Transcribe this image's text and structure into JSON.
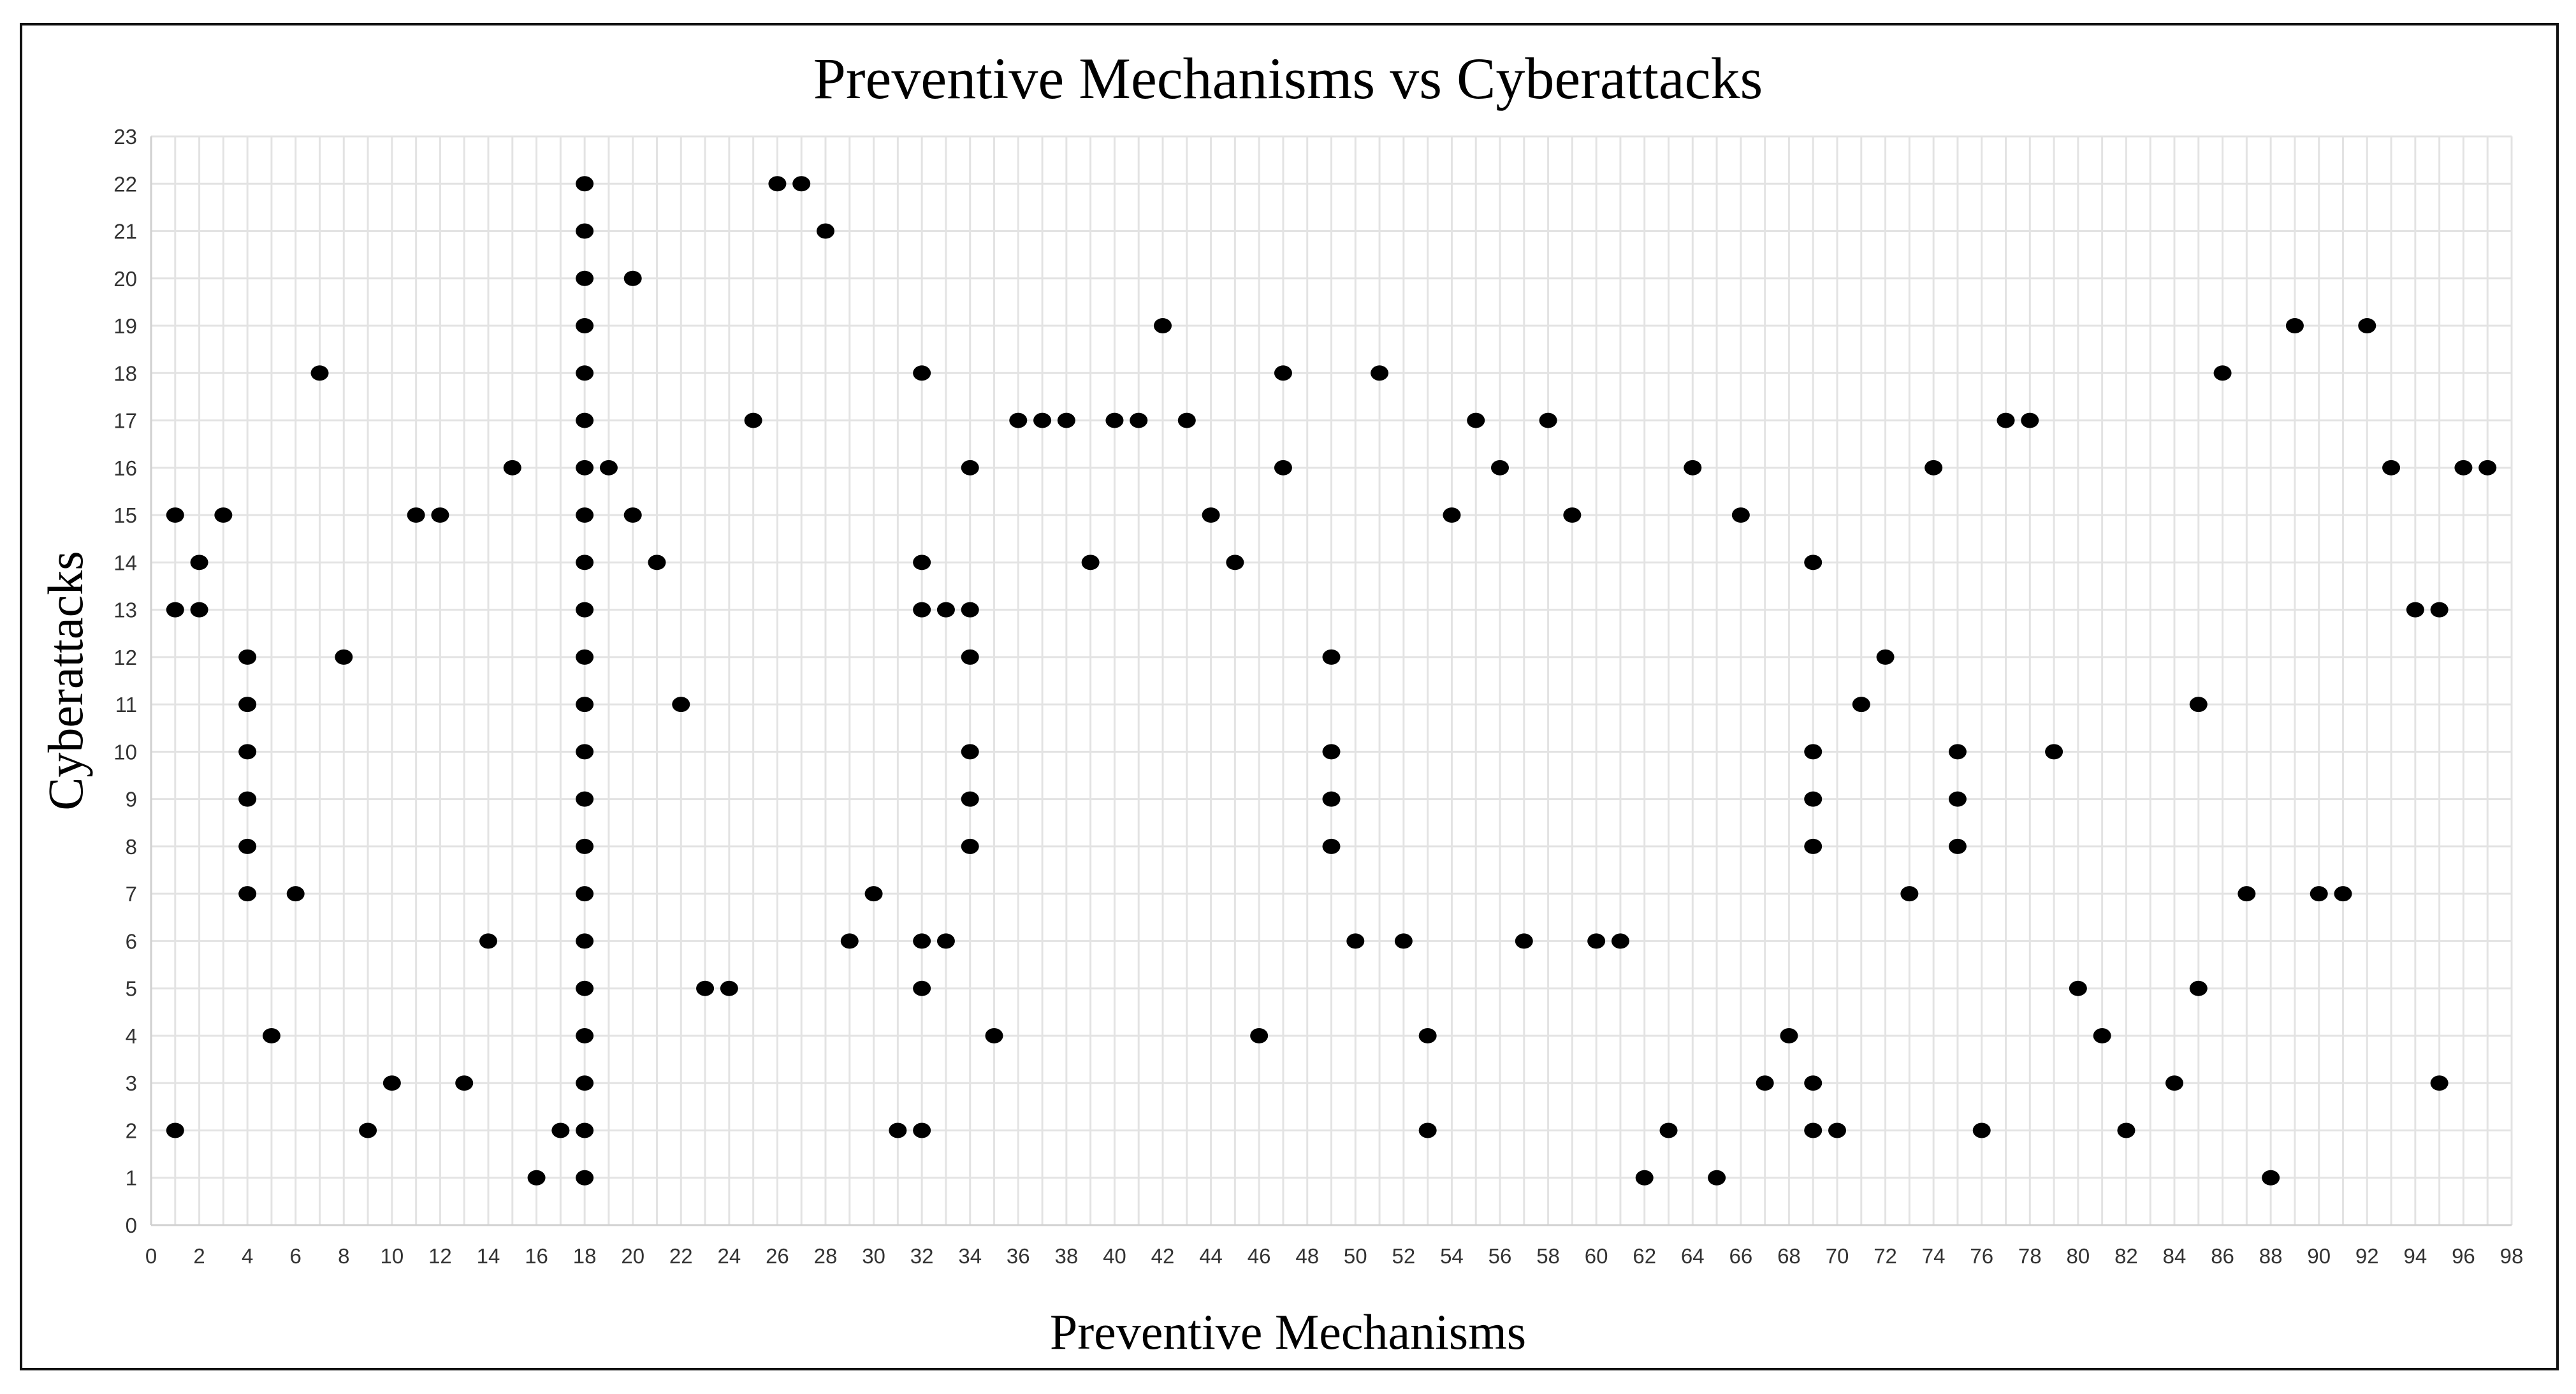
{
  "chart_data": {
    "type": "scatter",
    "title": "Preventive Mechanisms vs Cyberattacks",
    "xlabel": "Preventive Mechanisms",
    "ylabel": "Cyberattacks",
    "xlim": [
      0,
      98
    ],
    "ylim": [
      0,
      23
    ],
    "x_tick_step": 2,
    "y_tick_step": 1,
    "grid": true,
    "marker_color": "#000000",
    "grid_color": "#e3e3e3",
    "points": [
      [
        1,
        15
      ],
      [
        1,
        13
      ],
      [
        1,
        2
      ],
      [
        2,
        14
      ],
      [
        2,
        13
      ],
      [
        3,
        15
      ],
      [
        4,
        12
      ],
      [
        4,
        11
      ],
      [
        4,
        10
      ],
      [
        4,
        9
      ],
      [
        4,
        8
      ],
      [
        4,
        7
      ],
      [
        5,
        4
      ],
      [
        6,
        7
      ],
      [
        7,
        18
      ],
      [
        8,
        12
      ],
      [
        9,
        2
      ],
      [
        10,
        3
      ],
      [
        11,
        15
      ],
      [
        12,
        15
      ],
      [
        13,
        3
      ],
      [
        14,
        6
      ],
      [
        15,
        16
      ],
      [
        16,
        1
      ],
      [
        17,
        2
      ],
      [
        18,
        22
      ],
      [
        18,
        21
      ],
      [
        18,
        20
      ],
      [
        18,
        19
      ],
      [
        18,
        18
      ],
      [
        18,
        17
      ],
      [
        18,
        16
      ],
      [
        18,
        15
      ],
      [
        18,
        14
      ],
      [
        18,
        13
      ],
      [
        18,
        12
      ],
      [
        18,
        11
      ],
      [
        18,
        10
      ],
      [
        18,
        9
      ],
      [
        18,
        8
      ],
      [
        18,
        7
      ],
      [
        18,
        6
      ],
      [
        18,
        5
      ],
      [
        18,
        4
      ],
      [
        18,
        3
      ],
      [
        18,
        2
      ],
      [
        18,
        1
      ],
      [
        19,
        16
      ],
      [
        20,
        20
      ],
      [
        20,
        15
      ],
      [
        21,
        14
      ],
      [
        22,
        11
      ],
      [
        23,
        5
      ],
      [
        24,
        5
      ],
      [
        25,
        17
      ],
      [
        26,
        22
      ],
      [
        27,
        22
      ],
      [
        28,
        21
      ],
      [
        29,
        6
      ],
      [
        30,
        7
      ],
      [
        31,
        2
      ],
      [
        32,
        18
      ],
      [
        32,
        14
      ],
      [
        32,
        13
      ],
      [
        32,
        6
      ],
      [
        32,
        5
      ],
      [
        32,
        2
      ],
      [
        33,
        13
      ],
      [
        33,
        6
      ],
      [
        34,
        16
      ],
      [
        34,
        13
      ],
      [
        34,
        12
      ],
      [
        34,
        10
      ],
      [
        34,
        9
      ],
      [
        34,
        8
      ],
      [
        35,
        4
      ],
      [
        36,
        17
      ],
      [
        37,
        17
      ],
      [
        38,
        17
      ],
      [
        39,
        14
      ],
      [
        40,
        17
      ],
      [
        41,
        17
      ],
      [
        42,
        19
      ],
      [
        43,
        17
      ],
      [
        44,
        15
      ],
      [
        45,
        14
      ],
      [
        46,
        4
      ],
      [
        47,
        18
      ],
      [
        47,
        16
      ],
      [
        49,
        12
      ],
      [
        49,
        10
      ],
      [
        49,
        9
      ],
      [
        49,
        8
      ],
      [
        50,
        6
      ],
      [
        51,
        18
      ],
      [
        52,
        6
      ],
      [
        53,
        4
      ],
      [
        53,
        2
      ],
      [
        54,
        15
      ],
      [
        55,
        17
      ],
      [
        56,
        16
      ],
      [
        57,
        6
      ],
      [
        58,
        17
      ],
      [
        59,
        15
      ],
      [
        60,
        6
      ],
      [
        61,
        6
      ],
      [
        62,
        1
      ],
      [
        63,
        2
      ],
      [
        64,
        16
      ],
      [
        65,
        1
      ],
      [
        66,
        15
      ],
      [
        67,
        3
      ],
      [
        68,
        4
      ],
      [
        69,
        14
      ],
      [
        69,
        10
      ],
      [
        69,
        9
      ],
      [
        69,
        8
      ],
      [
        69,
        3
      ],
      [
        69,
        2
      ],
      [
        70,
        2
      ],
      [
        71,
        11
      ],
      [
        72,
        12
      ],
      [
        73,
        7
      ],
      [
        74,
        16
      ],
      [
        75,
        10
      ],
      [
        75,
        9
      ],
      [
        75,
        8
      ],
      [
        76,
        2
      ],
      [
        77,
        17
      ],
      [
        78,
        17
      ],
      [
        79,
        10
      ],
      [
        80,
        5
      ],
      [
        81,
        4
      ],
      [
        82,
        2
      ],
      [
        84,
        3
      ],
      [
        85,
        11
      ],
      [
        85,
        5
      ],
      [
        86,
        18
      ],
      [
        87,
        7
      ],
      [
        88,
        1
      ],
      [
        89,
        19
      ],
      [
        90,
        7
      ],
      [
        91,
        7
      ],
      [
        92,
        19
      ],
      [
        93,
        16
      ],
      [
        94,
        13
      ],
      [
        95,
        13
      ],
      [
        95,
        3
      ],
      [
        96,
        16
      ],
      [
        97,
        16
      ]
    ]
  }
}
